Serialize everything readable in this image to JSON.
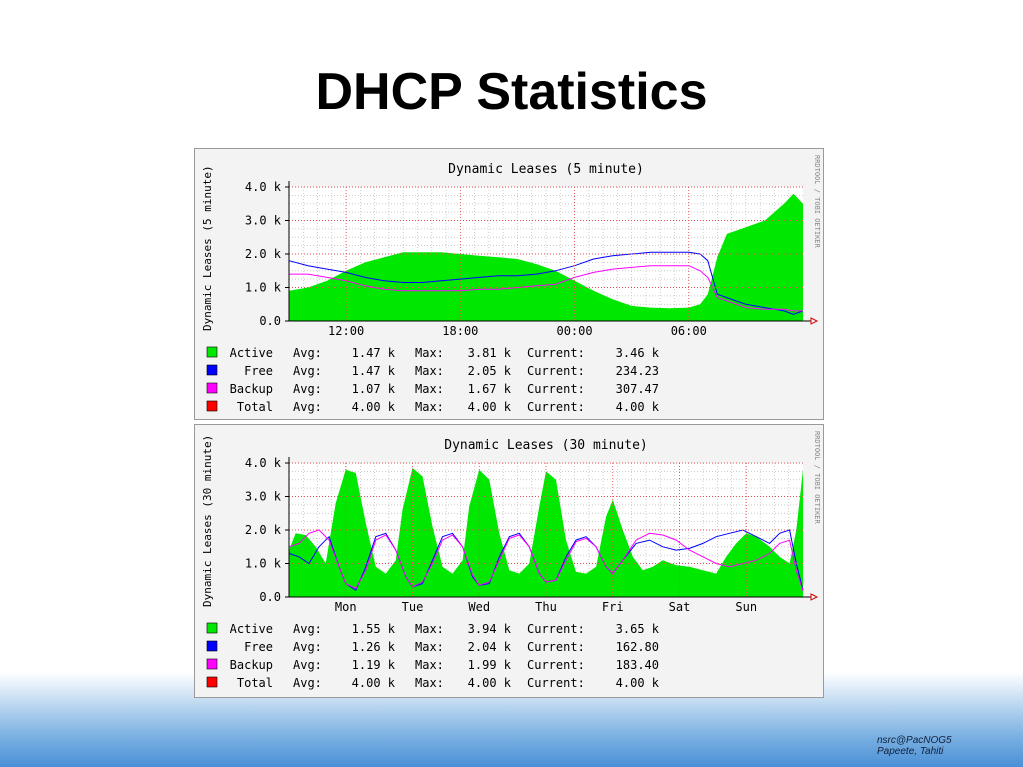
{
  "slide": {
    "title": "DHCP Statistics",
    "footer_line1": "nsrc@PacNOG5",
    "footer_line2": "Papeete, Tahiti"
  },
  "colors": {
    "active": "#00e800",
    "free": "#0000ff",
    "backup": "#ff00ff",
    "total": "#ff0000",
    "band": "#4a90d6"
  },
  "chart_data": [
    {
      "type": "area",
      "title": "Dynamic Leases (5 minute)",
      "ylabel": "Dynamic Leases (5 minute)",
      "watermark": "RRDTOOL / TOBI OETIKER",
      "ylim": [
        0,
        4000
      ],
      "yticks": [
        {
          "v": 0,
          "label": "0.0"
        },
        {
          "v": 1000,
          "label": "1.0 k"
        },
        {
          "v": 2000,
          "label": "2.0 k"
        },
        {
          "v": 3000,
          "label": "3.0 k"
        },
        {
          "v": 4000,
          "label": "4.0 k"
        }
      ],
      "xlim": [
        0,
        27
      ],
      "xticks": [
        {
          "x": 3,
          "label": "12:00"
        },
        {
          "x": 9,
          "label": "18:00"
        },
        {
          "x": 15,
          "label": "00:00"
        },
        {
          "x": 21,
          "label": "06:00"
        }
      ],
      "series": [
        {
          "name": "Active",
          "color": "#00e800",
          "fill": true,
          "x": [
            0,
            1,
            2,
            3,
            4,
            5,
            6,
            7,
            8,
            9,
            10,
            11,
            12,
            13,
            14,
            15,
            16,
            17,
            18,
            19,
            20,
            21,
            21.6,
            22,
            22.5,
            23,
            24,
            25,
            26,
            26.5,
            27
          ],
          "values": [
            900,
            1000,
            1200,
            1500,
            1750,
            1900,
            2050,
            2050,
            2050,
            2000,
            1950,
            1900,
            1850,
            1700,
            1500,
            1200,
            900,
            650,
            450,
            400,
            380,
            400,
            500,
            800,
            1900,
            2600,
            2800,
            3000,
            3500,
            3800,
            3500
          ]
        },
        {
          "name": "Free",
          "color": "#0000ff",
          "fill": false,
          "x": [
            0,
            1,
            2,
            3,
            4,
            5,
            6,
            7,
            8,
            9,
            10,
            11,
            12,
            13,
            14,
            15,
            16,
            17,
            18,
            19,
            20,
            21,
            21.6,
            22,
            22.5,
            23,
            24,
            25,
            26,
            26.5,
            27
          ],
          "values": [
            1800,
            1650,
            1550,
            1450,
            1300,
            1200,
            1150,
            1150,
            1200,
            1250,
            1300,
            1350,
            1350,
            1400,
            1500,
            1650,
            1850,
            1950,
            2000,
            2050,
            2050,
            2050,
            2000,
            1800,
            800,
            700,
            500,
            400,
            300,
            200,
            300
          ]
        },
        {
          "name": "Backup",
          "color": "#ff00ff",
          "fill": false,
          "x": [
            0,
            1,
            2,
            3,
            4,
            5,
            6,
            7,
            8,
            9,
            10,
            11,
            12,
            13,
            14,
            15,
            16,
            17,
            18,
            19,
            20,
            21,
            21.6,
            22,
            22.5,
            23,
            24,
            25,
            26,
            26.5,
            27
          ],
          "values": [
            1400,
            1400,
            1300,
            1200,
            1050,
            950,
            900,
            900,
            900,
            900,
            950,
            950,
            1000,
            1050,
            1100,
            1300,
            1450,
            1550,
            1600,
            1650,
            1650,
            1650,
            1500,
            1300,
            700,
            600,
            400,
            350,
            350,
            300,
            300
          ]
        }
      ],
      "legend": [
        {
          "name": "Active",
          "avg": "1.47 k",
          "max": "3.81 k",
          "current": "3.46 k",
          "color": "#00e800"
        },
        {
          "name": "Free",
          "avg": "1.47 k",
          "max": "2.05 k",
          "current": "234.23",
          "color": "#0000ff"
        },
        {
          "name": "Backup",
          "avg": "1.07 k",
          "max": "1.67 k",
          "current": "307.47",
          "color": "#ff00ff"
        },
        {
          "name": "Total",
          "avg": "4.00 k",
          "max": "4.00 k",
          "current": "4.00 k",
          "color": "#ff0000"
        }
      ]
    },
    {
      "type": "area",
      "title": "Dynamic Leases (30 minute)",
      "ylabel": "Dynamic Leases (30 minute)",
      "watermark": "RRDTOOL / TOBI OETIKER",
      "ylim": [
        0,
        4000
      ],
      "yticks": [
        {
          "v": 0,
          "label": "0.0"
        },
        {
          "v": 1000,
          "label": "1.0 k"
        },
        {
          "v": 2000,
          "label": "2.0 k"
        },
        {
          "v": 3000,
          "label": "3.0 k"
        },
        {
          "v": 4000,
          "label": "4.0 k"
        }
      ],
      "xlim": [
        0,
        7.7
      ],
      "xticks": [
        {
          "x": 0.85,
          "label": "Mon"
        },
        {
          "x": 1.85,
          "label": "Tue"
        },
        {
          "x": 2.85,
          "label": "Wed"
        },
        {
          "x": 3.85,
          "label": "Thu"
        },
        {
          "x": 4.85,
          "label": "Fri"
        },
        {
          "x": 5.85,
          "label": "Sat"
        },
        {
          "x": 6.85,
          "label": "Sun"
        }
      ],
      "series": [
        {
          "name": "Active",
          "color": "#00e800",
          "fill": true,
          "x": [
            0,
            0.1,
            0.25,
            0.4,
            0.55,
            0.7,
            0.85,
            1.0,
            1.15,
            1.3,
            1.45,
            1.6,
            1.7,
            1.85,
            2.0,
            2.15,
            2.3,
            2.45,
            2.6,
            2.7,
            2.85,
            3.0,
            3.15,
            3.3,
            3.45,
            3.6,
            3.75,
            3.85,
            4.0,
            4.15,
            4.3,
            4.45,
            4.6,
            4.75,
            4.85,
            5.0,
            5.15,
            5.3,
            5.45,
            5.6,
            5.8,
            6.0,
            6.2,
            6.4,
            6.55,
            6.7,
            6.85,
            7.0,
            7.2,
            7.35,
            7.5,
            7.6,
            7.7
          ],
          "values": [
            1400,
            1900,
            1850,
            1500,
            1000,
            2800,
            3800,
            3700,
            2200,
            900,
            700,
            1100,
            2600,
            3850,
            3600,
            2100,
            900,
            700,
            1100,
            2700,
            3800,
            3500,
            1900,
            800,
            700,
            1000,
            2700,
            3750,
            3500,
            1700,
            750,
            700,
            900,
            2400,
            2900,
            2000,
            1200,
            800,
            900,
            1100,
            950,
            900,
            800,
            700,
            1200,
            1600,
            1900,
            1800,
            1500,
            1200,
            1000,
            2000,
            3800
          ]
        },
        {
          "name": "Free",
          "color": "#0000ff",
          "fill": false,
          "x": [
            0,
            0.15,
            0.3,
            0.45,
            0.6,
            0.75,
            0.85,
            1.0,
            1.15,
            1.3,
            1.45,
            1.6,
            1.75,
            1.85,
            2.0,
            2.15,
            2.3,
            2.45,
            2.6,
            2.75,
            2.85,
            3.0,
            3.15,
            3.3,
            3.45,
            3.6,
            3.75,
            3.85,
            4.0,
            4.15,
            4.3,
            4.45,
            4.6,
            4.75,
            4.85,
            5.0,
            5.2,
            5.4,
            5.6,
            5.8,
            6.0,
            6.2,
            6.4,
            6.6,
            6.8,
            7.0,
            7.2,
            7.35,
            7.5,
            7.6,
            7.7
          ],
          "values": [
            1300,
            1200,
            1000,
            1500,
            1800,
            900,
            400,
            200,
            900,
            1800,
            1900,
            1400,
            600,
            300,
            400,
            1100,
            1800,
            1900,
            1500,
            600,
            350,
            400,
            1200,
            1800,
            1900,
            1500,
            700,
            450,
            500,
            1200,
            1700,
            1800,
            1500,
            900,
            700,
            1100,
            1600,
            1700,
            1500,
            1400,
            1450,
            1600,
            1800,
            1900,
            2000,
            1800,
            1600,
            1900,
            2000,
            1000,
            200
          ]
        },
        {
          "name": "Backup",
          "color": "#ff00ff",
          "fill": false,
          "x": [
            0,
            0.15,
            0.3,
            0.45,
            0.6,
            0.75,
            0.85,
            1.0,
            1.15,
            1.3,
            1.45,
            1.6,
            1.75,
            1.85,
            2.0,
            2.15,
            2.3,
            2.45,
            2.6,
            2.75,
            2.85,
            3.0,
            3.15,
            3.3,
            3.45,
            3.6,
            3.75,
            3.85,
            4.0,
            4.15,
            4.3,
            4.45,
            4.6,
            4.75,
            4.85,
            5.0,
            5.2,
            5.4,
            5.6,
            5.8,
            6.0,
            6.2,
            6.4,
            6.6,
            6.8,
            7.0,
            7.2,
            7.35,
            7.5,
            7.6,
            7.7
          ],
          "values": [
            1500,
            1600,
            1900,
            2000,
            1700,
            900,
            400,
            250,
            800,
            1700,
            1850,
            1400,
            600,
            300,
            450,
            1000,
            1700,
            1850,
            1500,
            650,
            350,
            450,
            1100,
            1750,
            1850,
            1500,
            700,
            450,
            500,
            1100,
            1650,
            1750,
            1500,
            900,
            700,
            1100,
            1700,
            1900,
            1850,
            1700,
            1400,
            1200,
            1000,
            900,
            1000,
            1100,
            1300,
            1600,
            1700,
            800,
            180
          ]
        }
      ],
      "legend": [
        {
          "name": "Active",
          "avg": "1.55 k",
          "max": "3.94 k",
          "current": "3.65 k",
          "color": "#00e800"
        },
        {
          "name": "Free",
          "avg": "1.26 k",
          "max": "2.04 k",
          "current": "162.80",
          "color": "#0000ff"
        },
        {
          "name": "Backup",
          "avg": "1.19 k",
          "max": "1.99 k",
          "current": "183.40",
          "color": "#ff00ff"
        },
        {
          "name": "Total",
          "avg": "4.00 k",
          "max": "4.00 k",
          "current": "4.00 k",
          "color": "#ff0000"
        }
      ]
    }
  ],
  "legend_labels": {
    "avg": "Avg:",
    "max": "Max:",
    "current": "Current:"
  }
}
